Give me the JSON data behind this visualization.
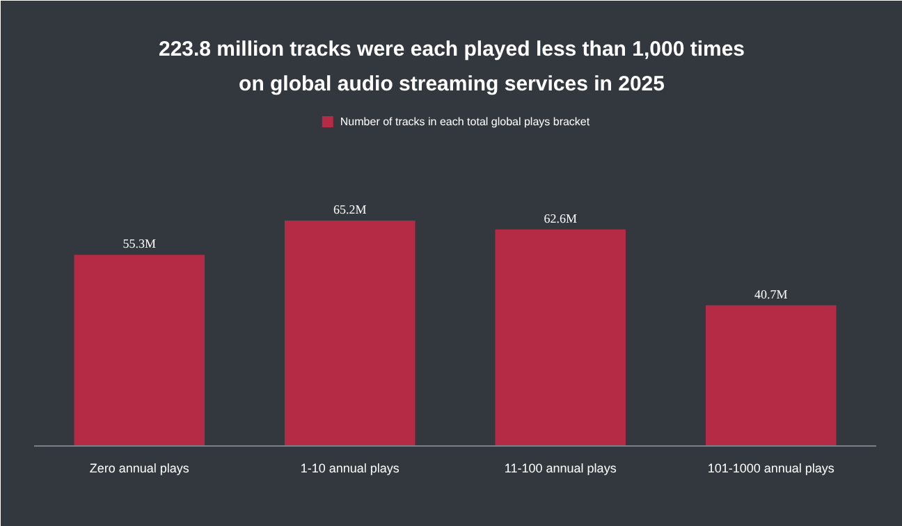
{
  "chart_data": {
    "type": "bar",
    "title": "223.8 million tracks were each played less than 1,000 times on global audio streaming services in 2025",
    "categories": [
      "Zero annual plays",
      "1-10 annual plays",
      "11-100 annual plays",
      "101-1000 annual plays"
    ],
    "series": [
      {
        "name": "Number of tracks in each total global plays bracket",
        "color": "#b52b45",
        "values": [
          55.3,
          65.2,
          62.6,
          40.7
        ],
        "value_labels": [
          "55.3M",
          "65.2M",
          "62.6M",
          "40.7M"
        ]
      }
    ],
    "legend": "top",
    "grid": false
  }
}
